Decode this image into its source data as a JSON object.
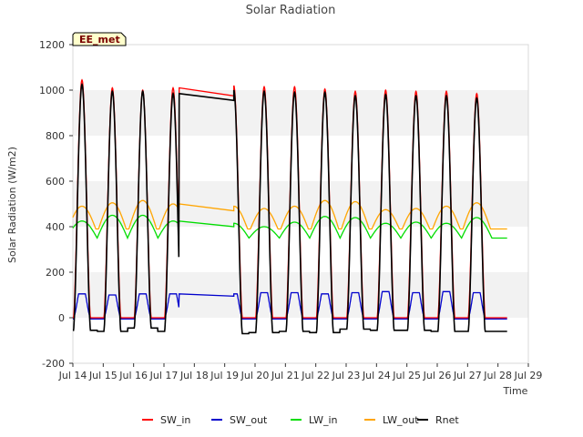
{
  "chart_data": {
    "type": "line",
    "title": "Solar Radiation",
    "badge": "EE_met",
    "xlabel": "Time",
    "ylabel": "Solar Radiation (W/m2)",
    "xlim": [
      14,
      29
    ],
    "ylim": [
      -200,
      1200
    ],
    "x_ticks": [
      14,
      15,
      16,
      17,
      18,
      19,
      20,
      21,
      22,
      23,
      24,
      25,
      26,
      27,
      28,
      29
    ],
    "x_tick_labels": [
      "Jul 14",
      "Jul 15",
      "Jul 16",
      "Jul 17",
      "Jul 18",
      "Jul 19",
      "Jul 20",
      "Jul 21",
      "Jul 22",
      "Jul 23",
      "Jul 24",
      "Jul 25",
      "Jul 26",
      "Jul 27",
      "Jul 28",
      "Jul 29"
    ],
    "y_ticks": [
      -200,
      0,
      200,
      400,
      600,
      800,
      1000,
      1200
    ],
    "y_tick_labels": [
      "-200",
      "0",
      "200",
      "400",
      "600",
      "800",
      "1000",
      "1200"
    ],
    "grid": "horizontal bands",
    "legend_position": "bottom",
    "series": [
      {
        "name": "SW_in",
        "color": "#ff0000"
      },
      {
        "name": "SW_out",
        "color": "#0000cc"
      },
      {
        "name": "LW_in",
        "color": "#00dd00"
      },
      {
        "name": "LW_out",
        "color": "#ffa500"
      },
      {
        "name": "Rnet",
        "color": "#000000"
      }
    ],
    "days": [
      {
        "day": 14.3,
        "sw_in_peak": 1045,
        "sw_out_peak": 105,
        "lw_in_peak": 425,
        "lw_out_peak": 490,
        "rnet_peak": 1025,
        "rnet_night": -55
      },
      {
        "day": 15.3,
        "sw_in_peak": 1010,
        "sw_out_peak": 100,
        "lw_in_peak": 450,
        "lw_out_peak": 505,
        "rnet_peak": 995,
        "rnet_night": -60
      },
      {
        "day": 16.3,
        "sw_in_peak": 1000,
        "sw_out_peak": 105,
        "lw_in_peak": 450,
        "lw_out_peak": 515,
        "rnet_peak": 995,
        "rnet_night": -45
      },
      {
        "day": 17.3,
        "sw_in_peak": 1010,
        "sw_out_peak": 105,
        "lw_in_peak": 425,
        "lw_out_peak": 500,
        "rnet_peak": 985,
        "rnet_night": -60
      },
      {
        "day": 19.3,
        "sw_in_peak": 1020,
        "sw_out_peak": 105,
        "lw_in_peak": 415,
        "lw_out_peak": 490,
        "rnet_peak": 1000,
        "rnet_night": -70
      },
      {
        "day": 20.3,
        "sw_in_peak": 1015,
        "sw_out_peak": 110,
        "lw_in_peak": 400,
        "lw_out_peak": 480,
        "rnet_peak": 995,
        "rnet_night": -65
      },
      {
        "day": 21.3,
        "sw_in_peak": 1015,
        "sw_out_peak": 110,
        "lw_in_peak": 420,
        "lw_out_peak": 490,
        "rnet_peak": 990,
        "rnet_night": -60
      },
      {
        "day": 22.3,
        "sw_in_peak": 1005,
        "sw_out_peak": 105,
        "lw_in_peak": 445,
        "lw_out_peak": 515,
        "rnet_peak": 990,
        "rnet_night": -65
      },
      {
        "day": 23.3,
        "sw_in_peak": 995,
        "sw_out_peak": 110,
        "lw_in_peak": 440,
        "lw_out_peak": 510,
        "rnet_peak": 975,
        "rnet_night": -50
      },
      {
        "day": 24.3,
        "sw_in_peak": 1000,
        "sw_out_peak": 115,
        "lw_in_peak": 415,
        "lw_out_peak": 475,
        "rnet_peak": 980,
        "rnet_night": -55
      },
      {
        "day": 25.3,
        "sw_in_peak": 995,
        "sw_out_peak": 110,
        "lw_in_peak": 420,
        "lw_out_peak": 480,
        "rnet_peak": 975,
        "rnet_night": -55
      },
      {
        "day": 26.3,
        "sw_in_peak": 995,
        "sw_out_peak": 115,
        "lw_in_peak": 415,
        "lw_out_peak": 490,
        "rnet_peak": 975,
        "rnet_night": -60
      },
      {
        "day": 27.3,
        "sw_in_peak": 985,
        "sw_out_peak": 110,
        "lw_in_peak": 440,
        "lw_out_peak": 505,
        "rnet_peak": 965,
        "rnet_night": -60
      }
    ],
    "gap_segment": {
      "x_start": 17.5,
      "x_end": 19.3,
      "SW_in": [
        1010,
        975
      ],
      "SW_out": [
        105,
        95
      ],
      "LW_in": [
        425,
        400
      ],
      "LW_out": [
        500,
        470
      ],
      "Rnet": [
        985,
        955
      ]
    },
    "end_x": 28.3
  }
}
